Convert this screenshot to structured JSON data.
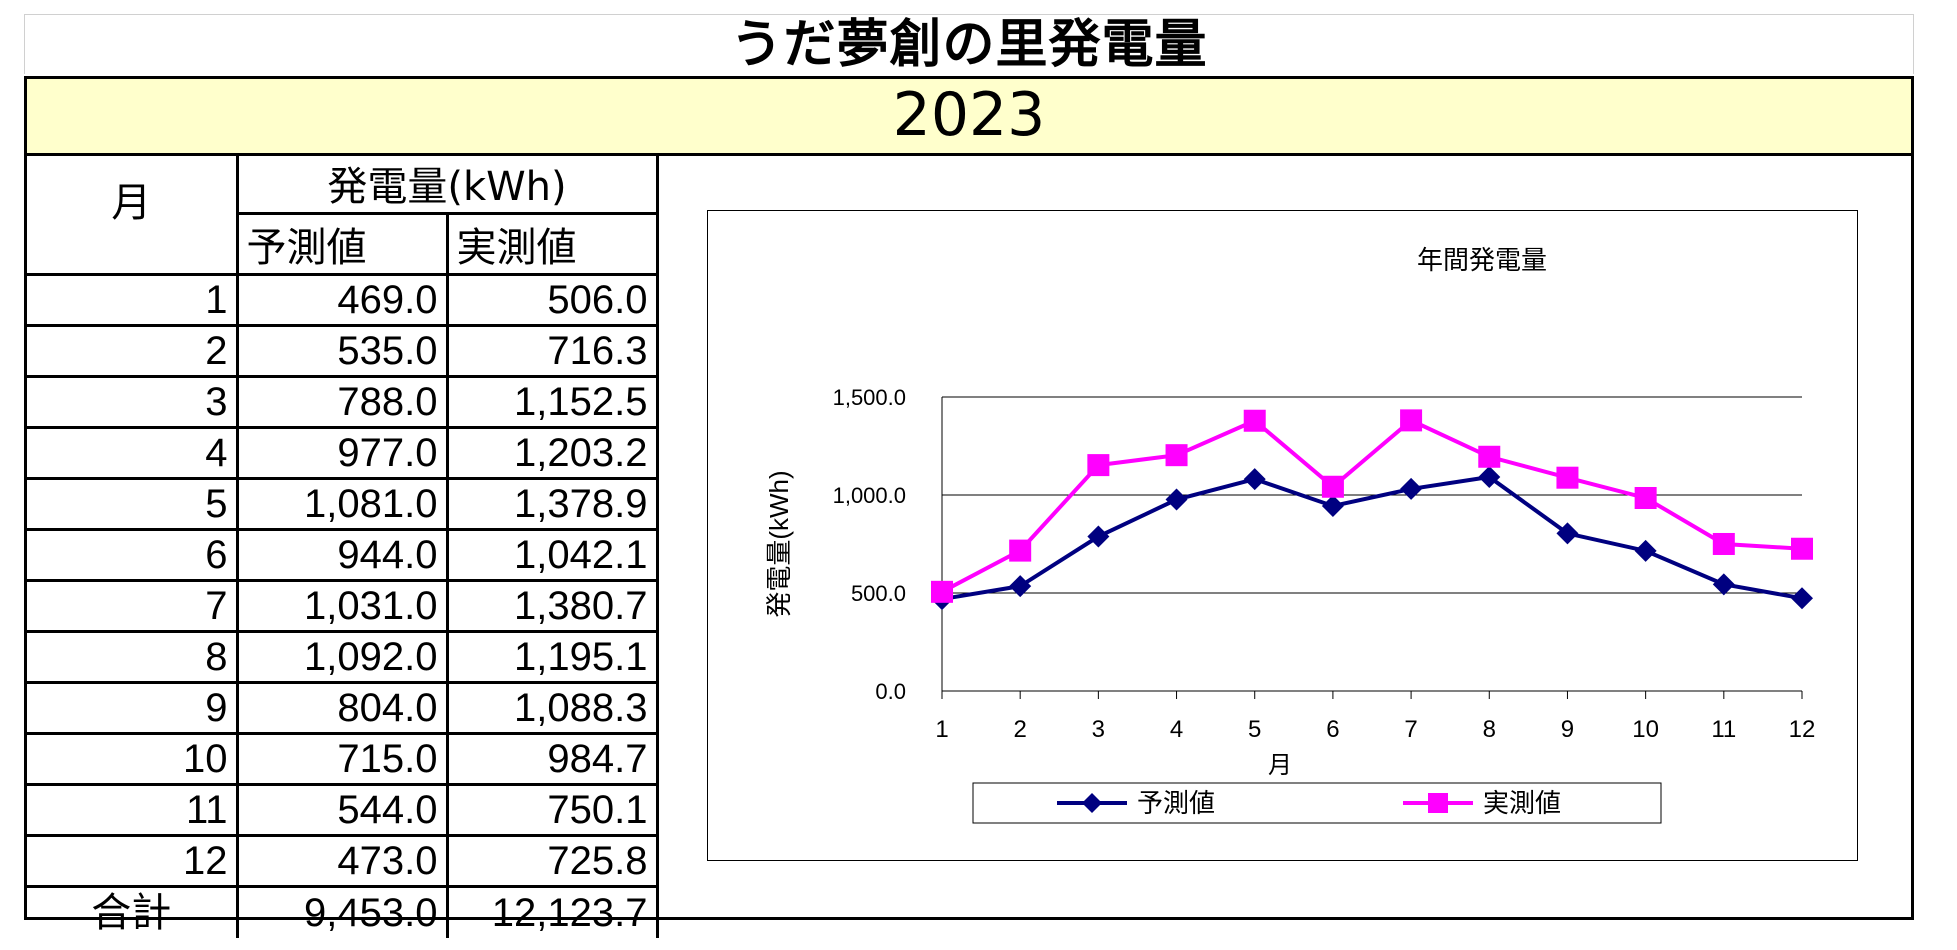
{
  "sheet": {
    "title": "うだ夢創の里発電量",
    "year": "2023"
  },
  "table": {
    "month_header": "月",
    "group_header": "発電量(kWh)",
    "pred_header": "予測値",
    "actual_header": "実測値",
    "rows": [
      {
        "month": "1",
        "pred": "469.0",
        "actual": "506.0"
      },
      {
        "month": "2",
        "pred": "535.0",
        "actual": "716.3"
      },
      {
        "month": "3",
        "pred": "788.0",
        "actual": "1,152.5"
      },
      {
        "month": "4",
        "pred": "977.0",
        "actual": "1,203.2"
      },
      {
        "month": "5",
        "pred": "1,081.0",
        "actual": "1,378.9"
      },
      {
        "month": "6",
        "pred": "944.0",
        "actual": "1,042.1"
      },
      {
        "month": "7",
        "pred": "1,031.0",
        "actual": "1,380.7"
      },
      {
        "month": "8",
        "pred": "1,092.0",
        "actual": "1,195.1"
      },
      {
        "month": "9",
        "pred": "804.0",
        "actual": "1,088.3"
      },
      {
        "month": "10",
        "pred": "715.0",
        "actual": "984.7"
      },
      {
        "month": "11",
        "pred": "544.0",
        "actual": "750.1"
      },
      {
        "month": "12",
        "pred": "473.0",
        "actual": "725.8"
      }
    ],
    "total_label": "合計",
    "total_pred": "9,453.0",
    "total_actual": "12,123.7"
  },
  "chart_data": {
    "type": "line",
    "title": "年間発電量",
    "xlabel": "月",
    "ylabel": "発電量(kWh)",
    "categories": [
      "1",
      "2",
      "3",
      "4",
      "5",
      "6",
      "7",
      "8",
      "9",
      "10",
      "11",
      "12"
    ],
    "ylim": [
      0,
      1500
    ],
    "yticks": [
      "0.0",
      "500.0",
      "1,000.0",
      "1,500.0"
    ],
    "ytick_values": [
      0,
      500,
      1000,
      1500
    ],
    "grid": true,
    "legend": "bottom",
    "series": [
      {
        "name": "予測値",
        "color": "#000080",
        "marker": "diamond",
        "values": [
          469,
          535,
          788,
          977,
          1081,
          944,
          1031,
          1092,
          804,
          715,
          544,
          473
        ]
      },
      {
        "name": "実測値",
        "color": "#ff00ff",
        "marker": "square",
        "values": [
          506,
          716.3,
          1152.5,
          1203.2,
          1378.9,
          1042.1,
          1380.7,
          1195.1,
          1088.3,
          984.7,
          750.1,
          725.8
        ]
      }
    ]
  }
}
